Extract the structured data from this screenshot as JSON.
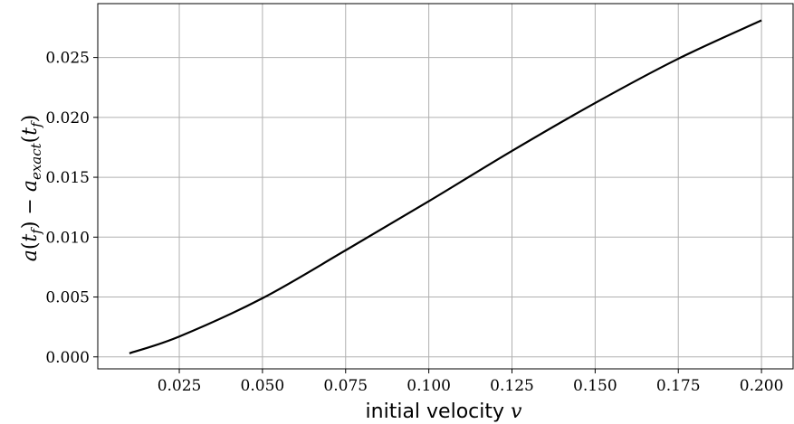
{
  "chart_data": {
    "type": "line",
    "title": "",
    "xlabel": "initial velocity v",
    "ylabel": "a(t_f) − a_exact(t_f)",
    "xlabel_text": "initial velocity ",
    "xlabel_var": "v",
    "ylabel_parts": {
      "a1": "a",
      "open1": "(",
      "t1": "t",
      "sub1": "f",
      "close1": ")",
      "minus": " − ",
      "a2": "a",
      "sub_exact": "exact",
      "open2": "(",
      "t2": "t",
      "sub2": "f",
      "close2": ")"
    },
    "xlim": [
      0.0005,
      0.2095
    ],
    "ylim": [
      -0.001,
      0.0295
    ],
    "x_ticks": [
      0.025,
      0.05,
      0.075,
      0.1,
      0.125,
      0.15,
      0.175,
      0.2
    ],
    "x_tick_labels": [
      "0.025",
      "0.050",
      "0.075",
      "0.100",
      "0.125",
      "0.150",
      "0.175",
      "0.200"
    ],
    "y_ticks": [
      0.0,
      0.005,
      0.01,
      0.015,
      0.02,
      0.025
    ],
    "y_tick_labels": [
      "0.000",
      "0.005",
      "0.010",
      "0.015",
      "0.020",
      "0.025"
    ],
    "grid": true,
    "series": [
      {
        "color": "#000000",
        "x": [
          0.01,
          0.025,
          0.05,
          0.075,
          0.1,
          0.125,
          0.15,
          0.175,
          0.2
        ],
        "y": [
          0.0003,
          0.0017,
          0.0049,
          0.0089,
          0.013,
          0.0172,
          0.0212,
          0.0249,
          0.0281
        ]
      }
    ]
  }
}
